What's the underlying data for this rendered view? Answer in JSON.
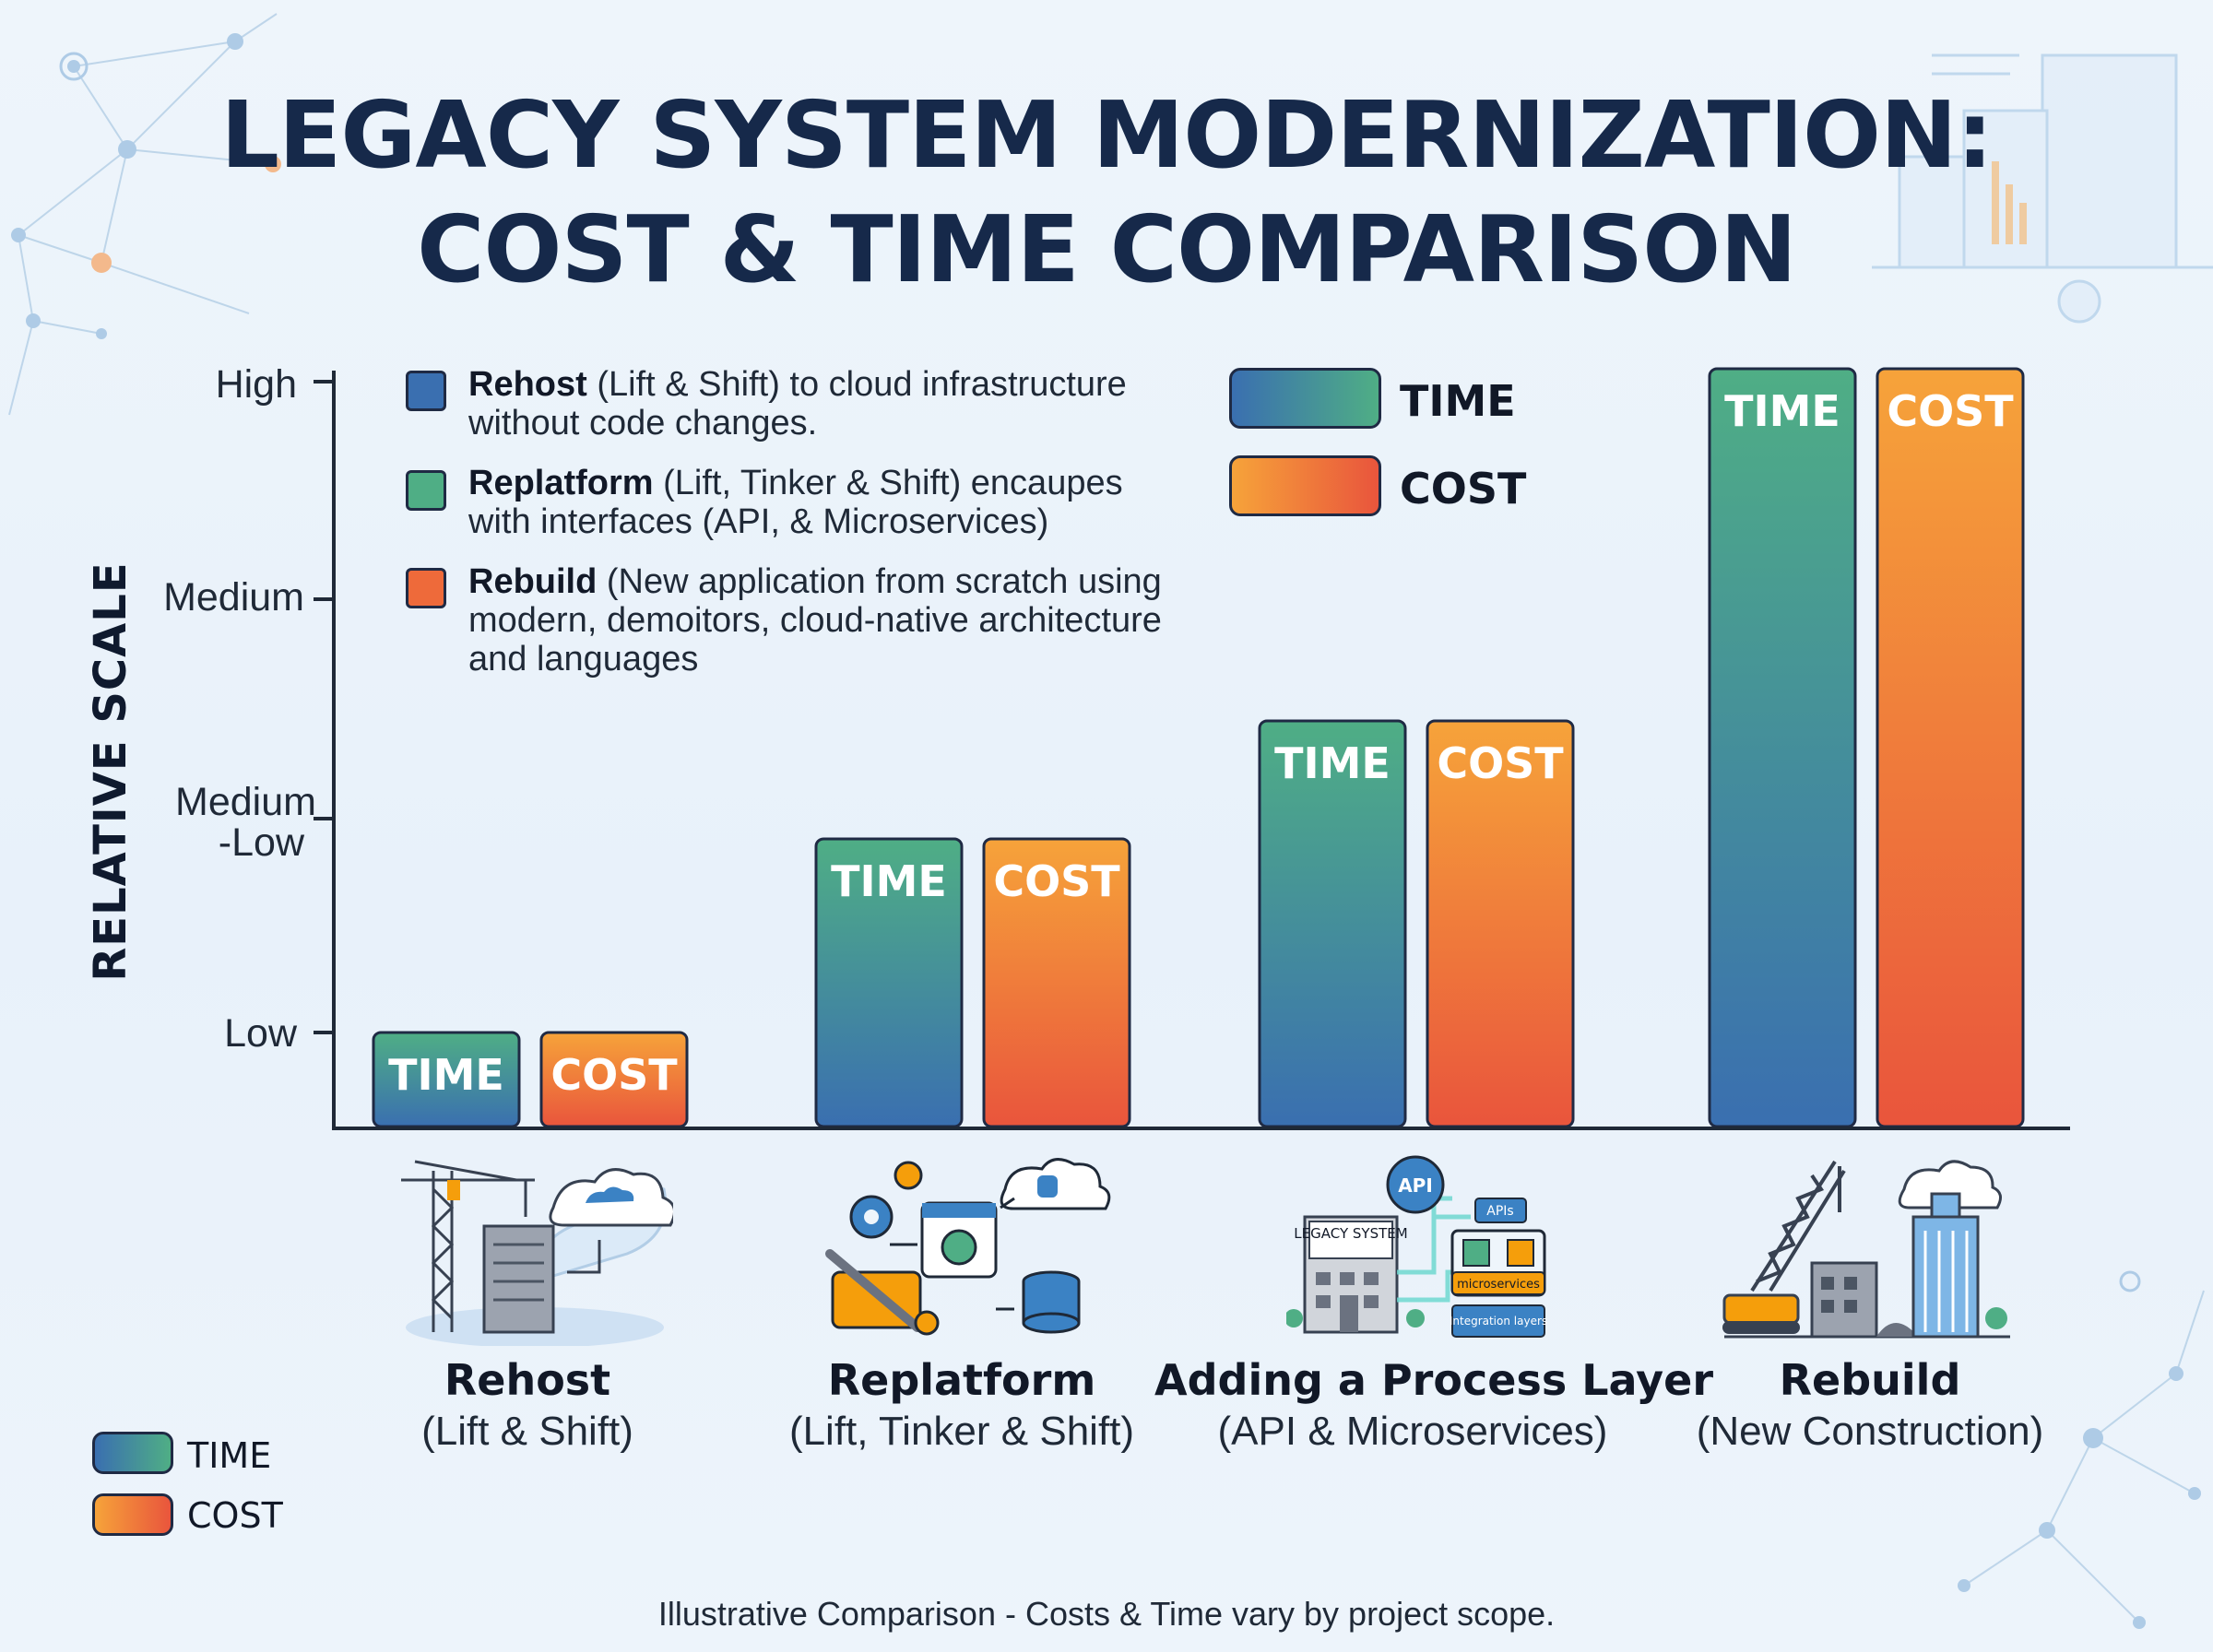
{
  "title": {
    "line1": "LEGACY SYSTEM MODERNIZATION:",
    "line2": "COST & TIME COMPARISON"
  },
  "legend_top": {
    "time": "TIME",
    "cost": "COST"
  },
  "legend_bottom": {
    "time": "TIME",
    "cost": "COST"
  },
  "descriptions": [
    {
      "bold": "Rehost",
      "text": " (Lift & Shift) to cloud infrastructure without code changes.",
      "color": "#3a6fb0"
    },
    {
      "bold": "Replatform",
      "text": " (Lift, Tinker & Shift) encaupes with interfaces (API, & Microservices)",
      "color": "#4fae85"
    },
    {
      "bold": "Rebuild",
      "text": " (New application from scratch using modern, demoitors, cloud-native architecture and languages",
      "color": "#ee6a3a"
    }
  ],
  "illustrations": {
    "legacy_box": "LEGACY SYSTEM",
    "api": "API",
    "apis": "APIs",
    "microservices": "microservices",
    "integration": "Integration layers"
  },
  "footnote": "Illustrative Comparison - Costs & Time vary by project scope.",
  "colors": {
    "time_top": "#4fae85",
    "time_bottom": "#3a6fb0",
    "cost_top": "#f6a33a",
    "cost_bottom": "#e9553c",
    "title": "#16294a",
    "axis": "#1f2937"
  },
  "chart_data": {
    "type": "bar",
    "ylabel": "RELATIVE SCALE",
    "y_ticks": [
      {
        "label": "High",
        "value": 4
      },
      {
        "label": "Medium",
        "value": 3
      },
      {
        "label": "Medium -Low",
        "value": 2
      },
      {
        "label": "Low",
        "value": 1
      }
    ],
    "ylim": [
      0,
      4.2
    ],
    "bar_label_time": "TIME",
    "bar_label_cost": "COST",
    "categories": [
      {
        "name": "Rehost",
        "sub": "(Lift & Shift)"
      },
      {
        "name": "Replatform",
        "sub": "(Lift, Tinker & Shift)"
      },
      {
        "name": "Adding a Process Layer",
        "sub": "(API & Microservices)"
      },
      {
        "name": "Rebuild",
        "sub": "(New Construction)"
      }
    ],
    "series": [
      {
        "name": "TIME",
        "values": [
          0.5,
          1.6,
          2.2,
          4.0
        ]
      },
      {
        "name": "COST",
        "values": [
          0.5,
          1.6,
          2.2,
          4.0
        ]
      }
    ]
  }
}
